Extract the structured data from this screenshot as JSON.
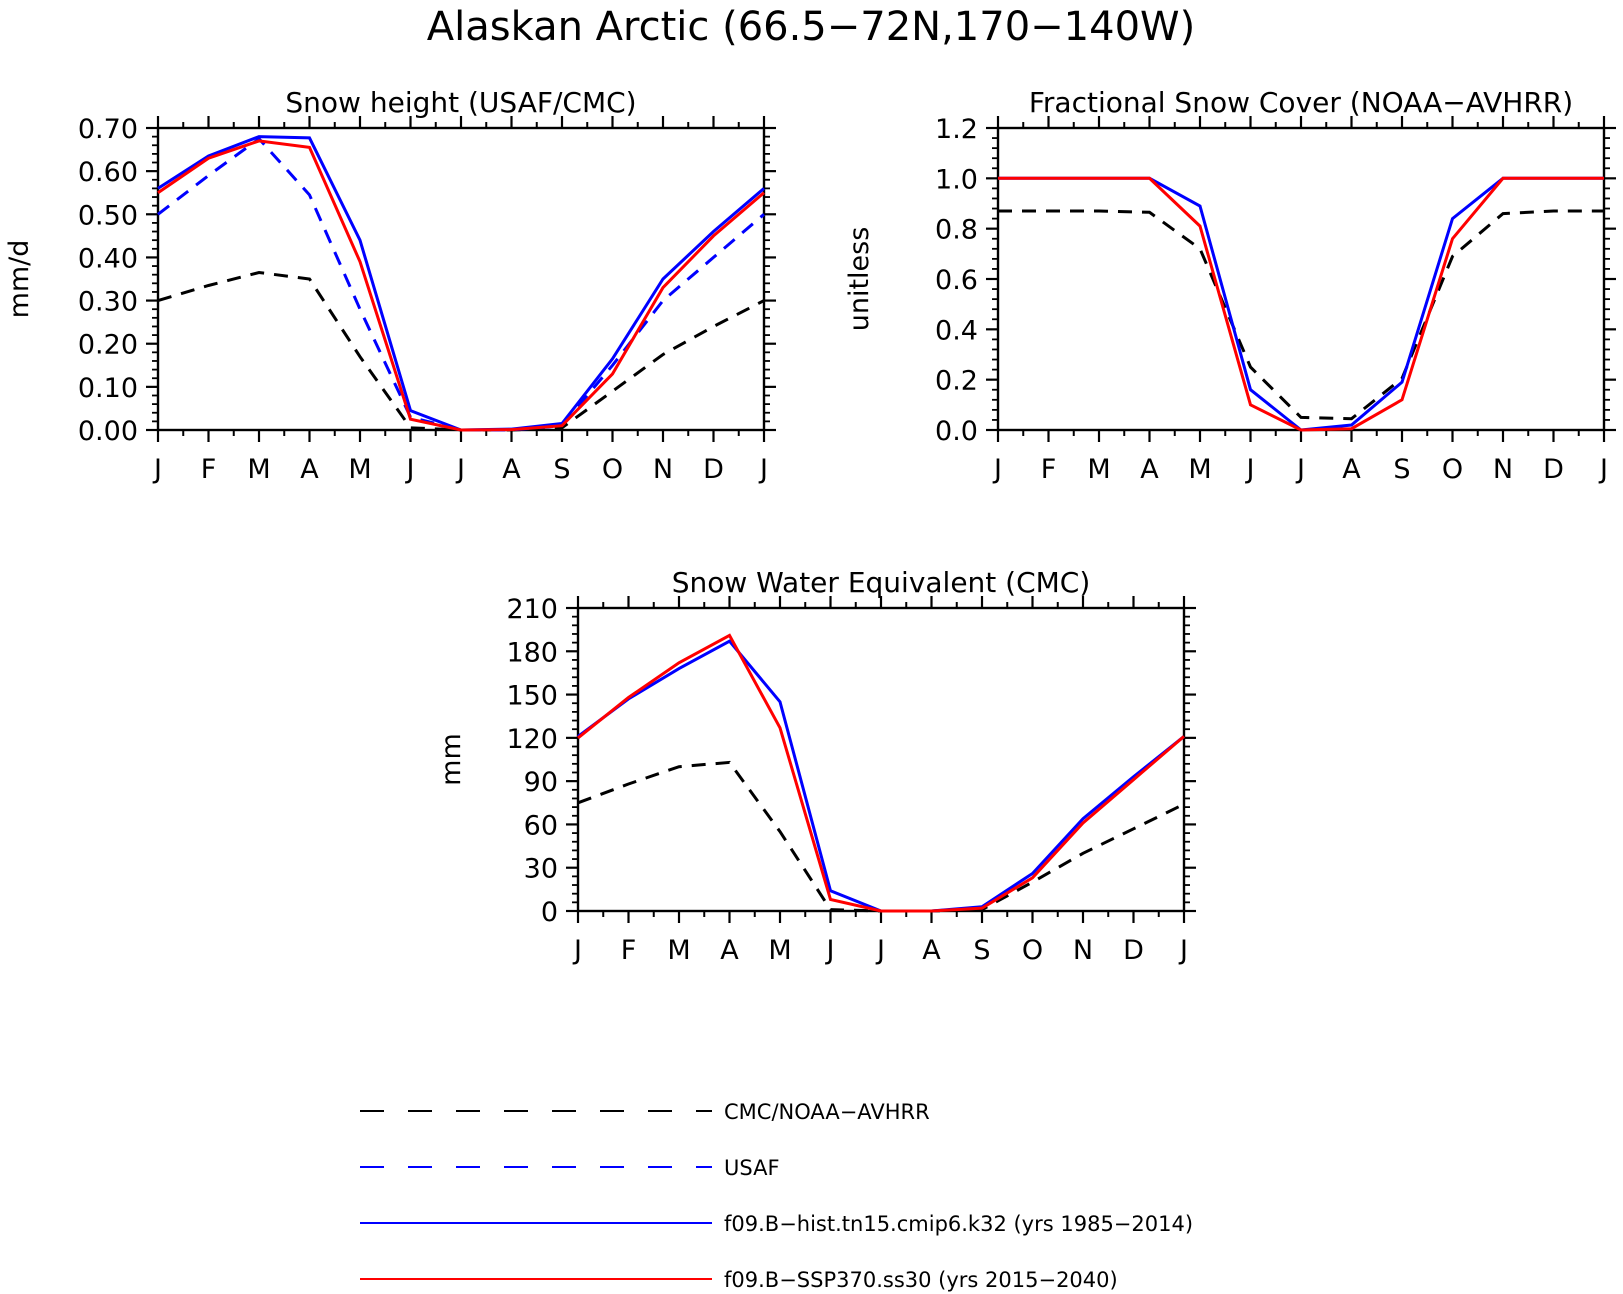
{
  "figure_title": "Alaskan Arctic (66.5−72N,170−140W)",
  "legend": [
    {
      "label": "CMC/NOAA−AVHRR",
      "color": "#000000",
      "style": "dashed"
    },
    {
      "label": "USAF",
      "color": "#0000ff",
      "style": "dashed"
    },
    {
      "label": "f09.B−hist.tn15.cmip6.k32 (yrs 1985−2014)",
      "color": "#0000ff",
      "style": "solid"
    },
    {
      "label": "f09.B−SSP370.ss30 (yrs 2015−2040)",
      "color": "#ff0000",
      "style": "solid"
    }
  ],
  "chart_data": [
    {
      "type": "line",
      "title": "Snow height (USAF/CMC)",
      "xlabel": "",
      "ylabel": "mm/d",
      "categories": [
        "J",
        "F",
        "M",
        "A",
        "M",
        "J",
        "J",
        "A",
        "S",
        "O",
        "N",
        "D",
        "J"
      ],
      "ylim": [
        0,
        0.7
      ],
      "yticks": [
        "0.00",
        "0.10",
        "0.20",
        "0.30",
        "0.40",
        "0.50",
        "0.60",
        "0.70"
      ],
      "series": [
        {
          "name": "CMC/NOAA−AVHRR",
          "color": "#000000",
          "style": "dashed",
          "values": [
            0.3,
            0.335,
            0.365,
            0.35,
            0.17,
            0.005,
            0.0,
            0.0,
            0.005,
            0.09,
            0.175,
            0.24,
            0.3
          ]
        },
        {
          "name": "USAF",
          "color": "#0000ff",
          "style": "dashed",
          "values": [
            0.5,
            0.59,
            0.675,
            0.545,
            0.28,
            0.03,
            0.0,
            0.0,
            0.01,
            0.15,
            0.3,
            0.4,
            0.5
          ]
        },
        {
          "name": "f09.B−hist.tn15.cmip6.k32 (yrs 1985−2014)",
          "color": "#0000ff",
          "style": "solid",
          "values": [
            0.56,
            0.635,
            0.68,
            0.677,
            0.44,
            0.045,
            0.0,
            0.002,
            0.015,
            0.165,
            0.35,
            0.46,
            0.56
          ]
        },
        {
          "name": "f09.B−SSP370.ss30 (yrs 2015−2040)",
          "color": "#ff0000",
          "style": "solid",
          "values": [
            0.55,
            0.63,
            0.67,
            0.655,
            0.39,
            0.025,
            0.0,
            0.001,
            0.01,
            0.13,
            0.33,
            0.45,
            0.55
          ]
        }
      ]
    },
    {
      "type": "line",
      "title": "Fractional Snow Cover (NOAA−AVHRR)",
      "xlabel": "",
      "ylabel": "unitless",
      "categories": [
        "J",
        "F",
        "M",
        "A",
        "M",
        "J",
        "J",
        "A",
        "S",
        "O",
        "N",
        "D",
        "J"
      ],
      "ylim": [
        0,
        1.2
      ],
      "yticks": [
        "0.0",
        "0.2",
        "0.4",
        "0.6",
        "0.8",
        "1.0",
        "1.2"
      ],
      "series": [
        {
          "name": "CMC/NOAA−AVHRR",
          "color": "#000000",
          "style": "dashed",
          "values": [
            0.87,
            0.87,
            0.87,
            0.865,
            0.72,
            0.25,
            0.05,
            0.045,
            0.205,
            0.69,
            0.86,
            0.87,
            0.87
          ]
        },
        {
          "name": "f09.B−hist.tn15.cmip6.k32 (yrs 1985−2014)",
          "color": "#0000ff",
          "style": "solid",
          "values": [
            1.0,
            1.0,
            1.0,
            1.0,
            0.89,
            0.16,
            0.0,
            0.02,
            0.19,
            0.84,
            1.0,
            1.0,
            1.0
          ]
        },
        {
          "name": "f09.B−SSP370.ss30 (yrs 2015−2040)",
          "color": "#ff0000",
          "style": "solid",
          "values": [
            1.0,
            1.0,
            1.0,
            1.0,
            0.81,
            0.1,
            0.0,
            0.005,
            0.12,
            0.76,
            1.0,
            1.0,
            1.0
          ]
        }
      ]
    },
    {
      "type": "line",
      "title": "Snow Water Equivalent (CMC)",
      "xlabel": "",
      "ylabel": "mm",
      "categories": [
        "J",
        "F",
        "M",
        "A",
        "M",
        "J",
        "J",
        "A",
        "S",
        "O",
        "N",
        "D",
        "J"
      ],
      "ylim": [
        0,
        210
      ],
      "yticks": [
        "0",
        "30",
        "60",
        "90",
        "120",
        "150",
        "180",
        "210"
      ],
      "series": [
        {
          "name": "CMC/NOAA−AVHRR",
          "color": "#000000",
          "style": "dashed",
          "values": [
            75,
            88,
            100,
            103,
            55,
            1,
            0,
            0,
            1,
            20,
            40,
            57,
            74
          ]
        },
        {
          "name": "f09.B−hist.tn15.cmip6.k32 (yrs 1985−2014)",
          "color": "#0000ff",
          "style": "solid",
          "values": [
            121,
            147,
            168,
            187,
            145,
            14,
            0,
            0,
            3,
            26,
            64,
            93,
            121
          ]
        },
        {
          "name": "f09.B−SSP370.ss30 (yrs 2015−2040)",
          "color": "#ff0000",
          "style": "solid",
          "values": [
            120,
            148,
            172,
            191,
            127,
            8,
            0,
            0,
            2,
            23,
            61,
            91,
            121
          ]
        }
      ]
    }
  ]
}
